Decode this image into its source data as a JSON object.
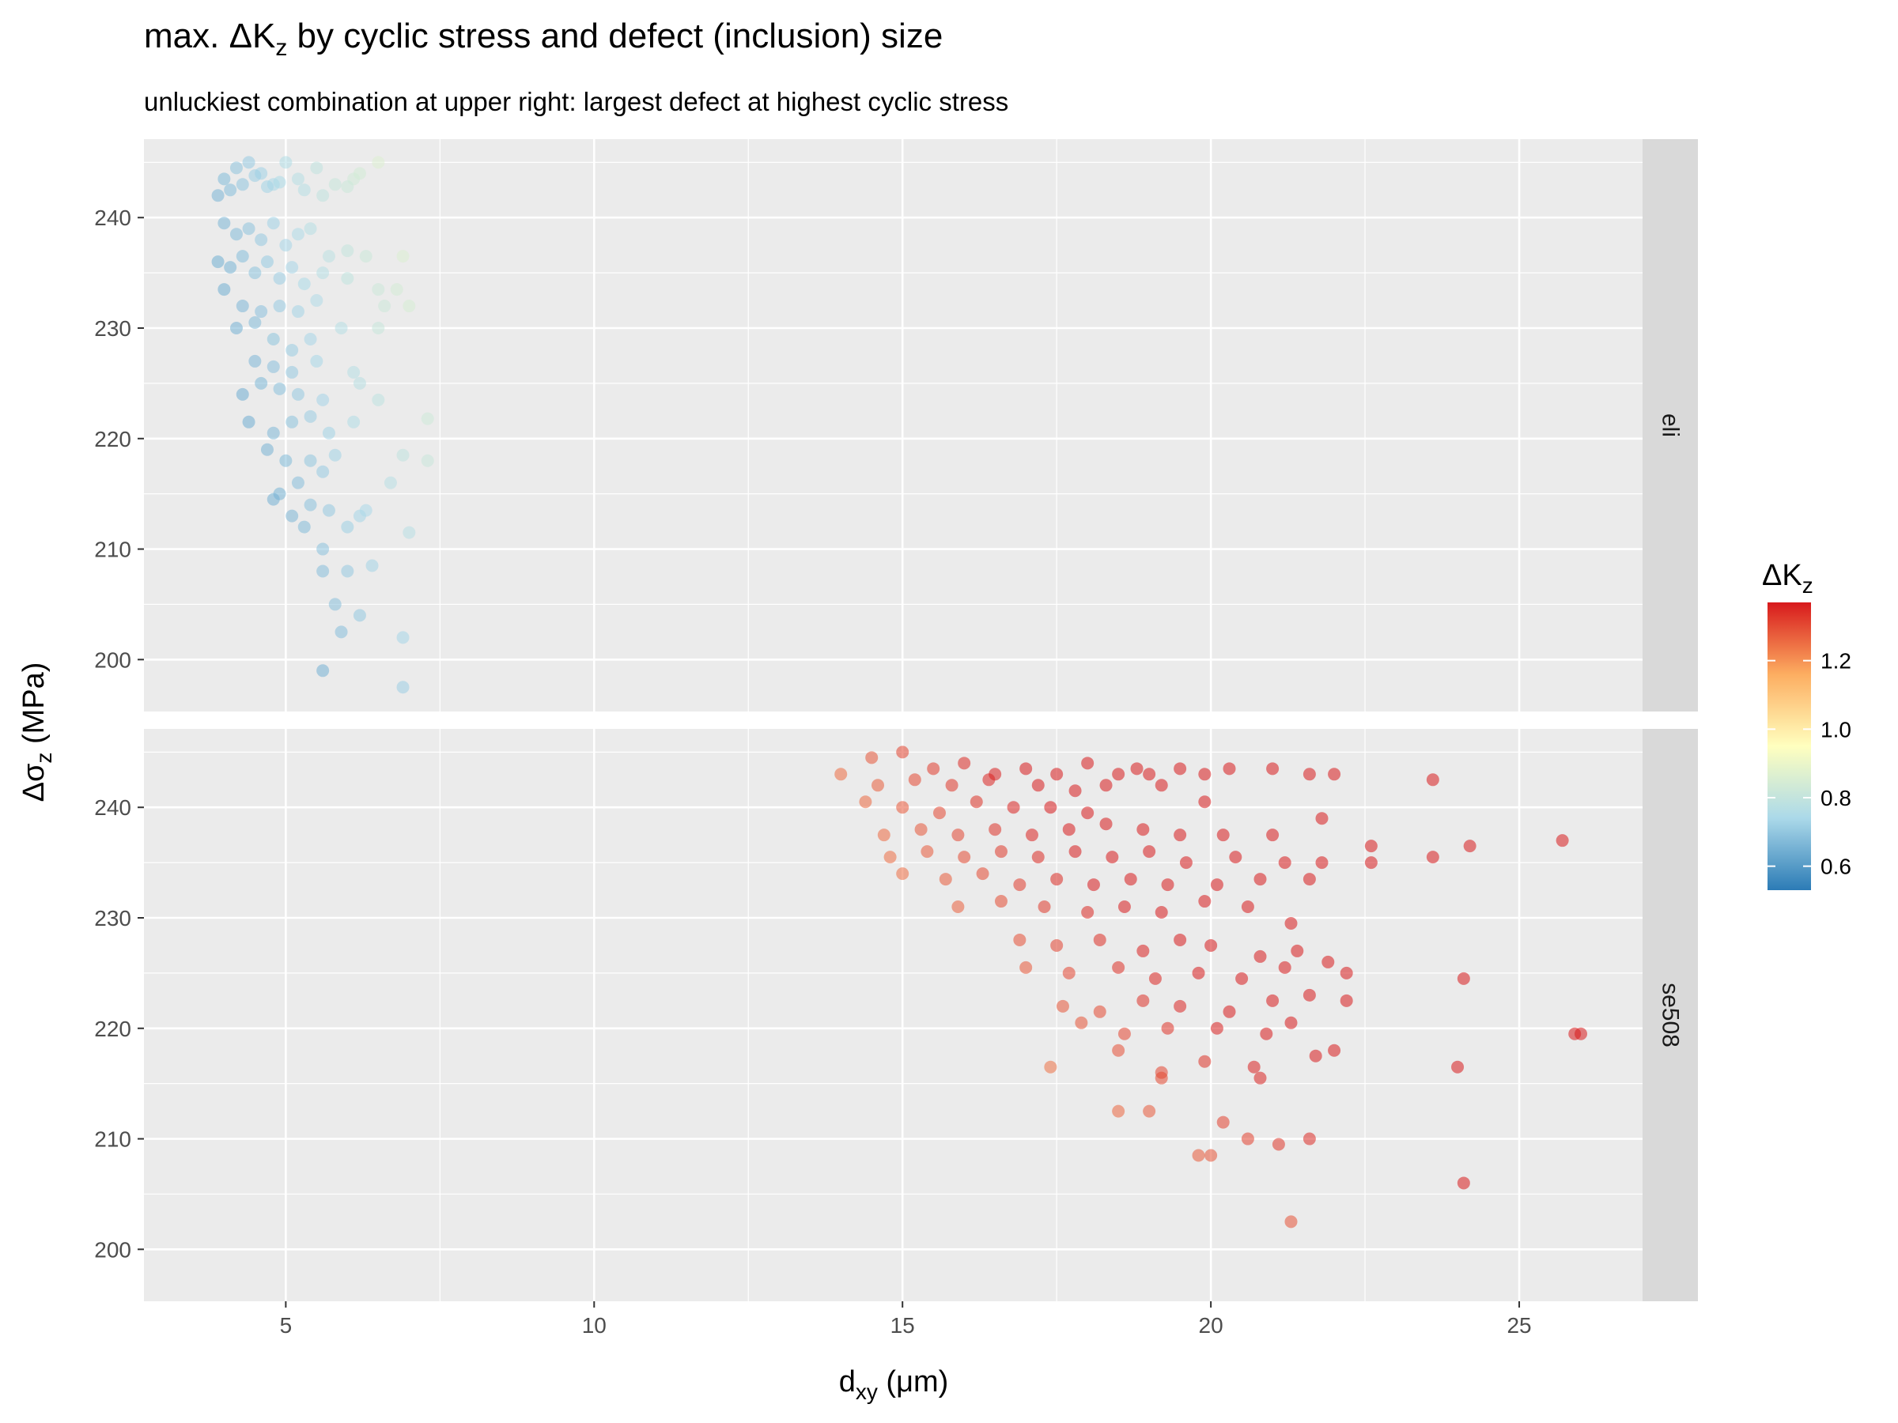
{
  "chart_data": {
    "type": "scatter",
    "title_prefix": "max. ΔK",
    "title_sub": "z",
    "title_suffix": " by cyclic stress and defect (inclusion) size",
    "subtitle": "unluckiest combination at upper right: largest defect at highest cyclic stress",
    "xlabel_main": "d",
    "xlabel_sub": "xy",
    "xlabel_unit": " (μm)",
    "ylabel_main": "Δσ",
    "ylabel_sub": "z",
    "ylabel_unit": " (MPa)",
    "xlim": [
      2.7,
      27.0
    ],
    "ylim": [
      195.3,
      247.1
    ],
    "x_ticks": [
      5,
      10,
      15,
      20,
      25
    ],
    "x_tick_labels": [
      "5",
      "10",
      "15",
      "20",
      "25"
    ],
    "y_ticks": [
      200,
      210,
      220,
      230,
      240
    ],
    "y_tick_labels": [
      "200",
      "210",
      "220",
      "230",
      "240"
    ],
    "grid": true,
    "legend": {
      "title_main": "ΔK",
      "title_sub": "z",
      "position": "right",
      "range": [
        0.53,
        1.37
      ],
      "ticks": [
        0.6,
        0.8,
        1.0,
        1.2
      ],
      "tick_labels": [
        "0.6",
        "0.8",
        "1.0",
        "1.2"
      ],
      "palette": [
        "#2c7bb6",
        "#abd9e9",
        "#ffffbf",
        "#fdae61",
        "#d7191c"
      ]
    },
    "facets": [
      {
        "label": "eli",
        "points": [
          [
            4.0,
            243.5
          ],
          [
            4.2,
            244.5
          ],
          [
            4.4,
            245.0
          ],
          [
            4.6,
            244.0
          ],
          [
            4.8,
            243.0
          ],
          [
            5.0,
            245.0
          ],
          [
            5.2,
            243.5
          ],
          [
            5.5,
            244.5
          ],
          [
            5.8,
            243.0
          ],
          [
            6.1,
            243.5
          ],
          [
            6.5,
            245.0
          ],
          [
            3.9,
            242.0
          ],
          [
            4.1,
            242.5
          ],
          [
            4.3,
            243.0
          ],
          [
            4.5,
            243.8
          ],
          [
            4.7,
            242.8
          ],
          [
            4.9,
            243.2
          ],
          [
            5.3,
            242.5
          ],
          [
            5.6,
            242.0
          ],
          [
            6.0,
            242.8
          ],
          [
            6.2,
            244.0
          ],
          [
            4.0,
            239.5
          ],
          [
            4.2,
            238.5
          ],
          [
            4.4,
            239.0
          ],
          [
            4.6,
            238.0
          ],
          [
            4.8,
            239.5
          ],
          [
            5.0,
            237.5
          ],
          [
            5.2,
            238.5
          ],
          [
            5.4,
            239.0
          ],
          [
            5.7,
            236.5
          ],
          [
            6.0,
            237.0
          ],
          [
            6.3,
            236.5
          ],
          [
            6.9,
            236.5
          ],
          [
            3.9,
            236.0
          ],
          [
            4.1,
            235.5
          ],
          [
            4.3,
            236.5
          ],
          [
            4.5,
            235.0
          ],
          [
            4.7,
            236.0
          ],
          [
            4.9,
            234.5
          ],
          [
            5.1,
            235.5
          ],
          [
            5.3,
            234.0
          ],
          [
            5.6,
            235.0
          ],
          [
            6.0,
            234.5
          ],
          [
            6.5,
            233.5
          ],
          [
            6.8,
            233.5
          ],
          [
            4.0,
            233.5
          ],
          [
            4.3,
            232.0
          ],
          [
            4.6,
            231.5
          ],
          [
            4.9,
            232.0
          ],
          [
            5.2,
            231.5
          ],
          [
            5.5,
            232.5
          ],
          [
            6.6,
            232.0
          ],
          [
            7.0,
            232.0
          ],
          [
            4.2,
            230.0
          ],
          [
            4.5,
            230.5
          ],
          [
            4.8,
            229.0
          ],
          [
            5.1,
            228.0
          ],
          [
            5.4,
            229.0
          ],
          [
            5.9,
            230.0
          ],
          [
            6.5,
            230.0
          ],
          [
            4.5,
            227.0
          ],
          [
            4.8,
            226.5
          ],
          [
            5.1,
            226.0
          ],
          [
            5.5,
            227.0
          ],
          [
            6.1,
            226.0
          ],
          [
            4.3,
            224.0
          ],
          [
            4.6,
            225.0
          ],
          [
            4.9,
            224.5
          ],
          [
            5.2,
            224.0
          ],
          [
            5.6,
            223.5
          ],
          [
            6.2,
            225.0
          ],
          [
            6.5,
            223.5
          ],
          [
            4.4,
            221.5
          ],
          [
            4.8,
            220.5
          ],
          [
            5.1,
            221.5
          ],
          [
            5.4,
            222.0
          ],
          [
            5.7,
            220.5
          ],
          [
            6.1,
            221.5
          ],
          [
            7.3,
            221.8
          ],
          [
            4.7,
            219.0
          ],
          [
            5.0,
            218.0
          ],
          [
            5.4,
            218.0
          ],
          [
            5.8,
            218.5
          ],
          [
            6.9,
            218.5
          ],
          [
            7.3,
            218.0
          ],
          [
            5.2,
            216.0
          ],
          [
            5.6,
            217.0
          ],
          [
            6.7,
            216.0
          ],
          [
            4.9,
            215.0
          ],
          [
            5.4,
            214.0
          ],
          [
            6.2,
            213.0
          ],
          [
            4.8,
            214.5
          ],
          [
            5.3,
            212.0
          ],
          [
            5.7,
            213.5
          ],
          [
            6.3,
            213.5
          ],
          [
            7.0,
            211.5
          ],
          [
            5.1,
            213.0
          ],
          [
            5.6,
            210.0
          ],
          [
            6.0,
            212.0
          ],
          [
            5.6,
            208.0
          ],
          [
            6.0,
            208.0
          ],
          [
            6.4,
            208.5
          ],
          [
            5.8,
            205.0
          ],
          [
            6.2,
            204.0
          ],
          [
            5.9,
            202.5
          ],
          [
            6.9,
            202.0
          ],
          [
            5.6,
            199.0
          ],
          [
            6.9,
            197.5
          ]
        ]
      },
      {
        "label": "se508",
        "points": [
          [
            14.0,
            243.0
          ],
          [
            14.5,
            244.5
          ],
          [
            15.0,
            245.0
          ],
          [
            15.5,
            243.5
          ],
          [
            16.0,
            244.0
          ],
          [
            16.5,
            243.0
          ],
          [
            17.0,
            243.5
          ],
          [
            17.5,
            243.0
          ],
          [
            18.0,
            244.0
          ],
          [
            18.5,
            243.0
          ],
          [
            18.8,
            243.5
          ],
          [
            19.0,
            243.0
          ],
          [
            19.5,
            243.5
          ],
          [
            19.9,
            243.0
          ],
          [
            20.3,
            243.5
          ],
          [
            21.0,
            243.5
          ],
          [
            21.6,
            243.0
          ],
          [
            22.0,
            243.0
          ],
          [
            23.6,
            242.5
          ],
          [
            14.6,
            242.0
          ],
          [
            15.2,
            242.5
          ],
          [
            15.8,
            242.0
          ],
          [
            16.4,
            242.5
          ],
          [
            17.2,
            242.0
          ],
          [
            17.8,
            241.5
          ],
          [
            18.3,
            242.0
          ],
          [
            19.2,
            242.0
          ],
          [
            14.4,
            240.5
          ],
          [
            15.0,
            240.0
          ],
          [
            15.6,
            239.5
          ],
          [
            16.2,
            240.5
          ],
          [
            16.8,
            240.0
          ],
          [
            17.4,
            240.0
          ],
          [
            18.0,
            239.5
          ],
          [
            19.9,
            240.5
          ],
          [
            14.7,
            237.5
          ],
          [
            15.3,
            238.0
          ],
          [
            15.9,
            237.5
          ],
          [
            16.5,
            238.0
          ],
          [
            17.1,
            237.5
          ],
          [
            17.7,
            238.0
          ],
          [
            18.3,
            238.5
          ],
          [
            18.9,
            238.0
          ],
          [
            19.5,
            237.5
          ],
          [
            20.2,
            237.5
          ],
          [
            21.0,
            237.5
          ],
          [
            21.8,
            239.0
          ],
          [
            25.7,
            237.0
          ],
          [
            14.8,
            235.5
          ],
          [
            15.4,
            236.0
          ],
          [
            16.0,
            235.5
          ],
          [
            16.6,
            236.0
          ],
          [
            17.2,
            235.5
          ],
          [
            17.8,
            236.0
          ],
          [
            18.4,
            235.5
          ],
          [
            19.0,
            236.0
          ],
          [
            19.6,
            235.0
          ],
          [
            20.4,
            235.5
          ],
          [
            21.2,
            235.0
          ],
          [
            21.8,
            235.0
          ],
          [
            22.6,
            236.5
          ],
          [
            22.6,
            235.0
          ],
          [
            23.6,
            235.5
          ],
          [
            24.2,
            236.5
          ],
          [
            15.0,
            234.0
          ],
          [
            15.7,
            233.5
          ],
          [
            16.3,
            234.0
          ],
          [
            16.9,
            233.0
          ],
          [
            17.5,
            233.5
          ],
          [
            18.1,
            233.0
          ],
          [
            18.7,
            233.5
          ],
          [
            19.3,
            233.0
          ],
          [
            20.1,
            233.0
          ],
          [
            20.8,
            233.5
          ],
          [
            21.6,
            233.5
          ],
          [
            15.9,
            231.0
          ],
          [
            16.6,
            231.5
          ],
          [
            17.3,
            231.0
          ],
          [
            18.0,
            230.5
          ],
          [
            18.6,
            231.0
          ],
          [
            19.2,
            230.5
          ],
          [
            19.9,
            231.5
          ],
          [
            20.6,
            231.0
          ],
          [
            21.3,
            229.5
          ],
          [
            16.9,
            228.0
          ],
          [
            17.5,
            227.5
          ],
          [
            18.2,
            228.0
          ],
          [
            18.9,
            227.0
          ],
          [
            19.5,
            228.0
          ],
          [
            20.0,
            227.5
          ],
          [
            20.8,
            226.5
          ],
          [
            21.4,
            227.0
          ],
          [
            17.0,
            225.5
          ],
          [
            17.7,
            225.0
          ],
          [
            18.5,
            225.5
          ],
          [
            19.1,
            224.5
          ],
          [
            19.8,
            225.0
          ],
          [
            20.5,
            224.5
          ],
          [
            21.2,
            225.5
          ],
          [
            21.9,
            226.0
          ],
          [
            22.2,
            225.0
          ],
          [
            24.1,
            224.5
          ],
          [
            17.6,
            222.0
          ],
          [
            18.2,
            221.5
          ],
          [
            18.9,
            222.5
          ],
          [
            19.5,
            222.0
          ],
          [
            20.3,
            221.5
          ],
          [
            21.0,
            222.5
          ],
          [
            21.6,
            223.0
          ],
          [
            22.2,
            222.5
          ],
          [
            17.9,
            220.5
          ],
          [
            18.6,
            219.5
          ],
          [
            19.3,
            220.0
          ],
          [
            20.1,
            220.0
          ],
          [
            20.9,
            219.5
          ],
          [
            21.3,
            220.5
          ],
          [
            25.9,
            219.5
          ],
          [
            26.0,
            219.5
          ],
          [
            17.4,
            216.5
          ],
          [
            18.5,
            218.0
          ],
          [
            19.2,
            216.0
          ],
          [
            19.9,
            217.0
          ],
          [
            20.7,
            216.5
          ],
          [
            21.7,
            217.5
          ],
          [
            22.0,
            218.0
          ],
          [
            24.0,
            216.5
          ],
          [
            19.2,
            215.5
          ],
          [
            20.8,
            215.5
          ],
          [
            18.5,
            212.5
          ],
          [
            19.0,
            212.5
          ],
          [
            20.2,
            211.5
          ],
          [
            20.6,
            210.0
          ],
          [
            21.1,
            209.5
          ],
          [
            21.6,
            210.0
          ],
          [
            19.8,
            208.5
          ],
          [
            20.0,
            208.5
          ],
          [
            24.1,
            206.0
          ],
          [
            21.3,
            202.5
          ]
        ]
      }
    ]
  }
}
